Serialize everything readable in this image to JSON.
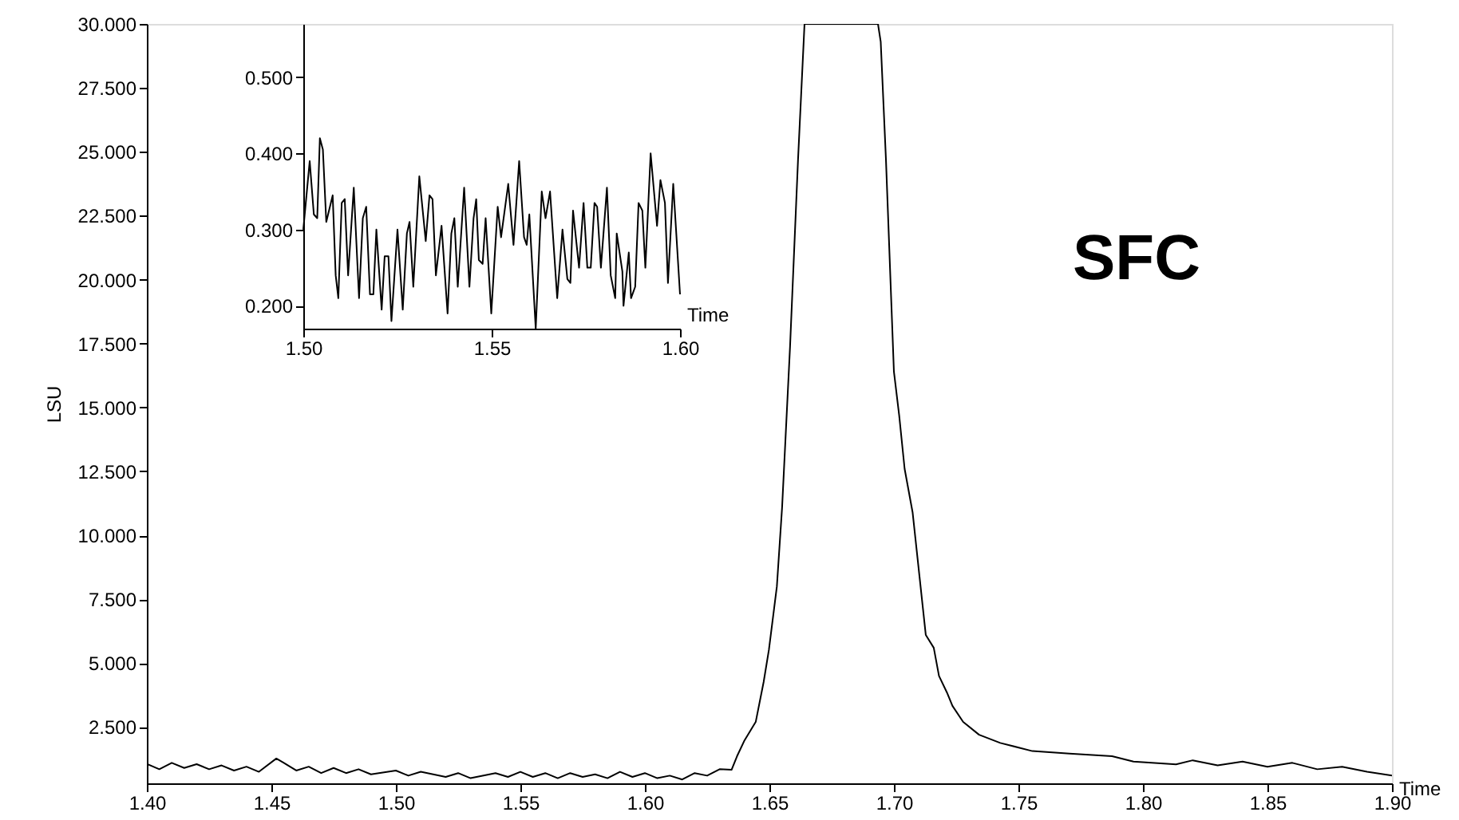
{
  "chart_data": [
    {
      "type": "line",
      "xlabel": "Time",
      "ylabel": "LSU",
      "annotations": [
        "SFC"
      ],
      "grid": false,
      "xlim": [
        1.4,
        1.9
      ],
      "ylim": [
        0.3,
        30
      ],
      "xticks": [
        {
          "value": 1.4,
          "label": "1.40"
        },
        {
          "value": 1.45,
          "label": "1.45"
        },
        {
          "value": 1.5,
          "label": "1.50"
        },
        {
          "value": 1.55,
          "label": "1.55"
        },
        {
          "value": 1.6,
          "label": "1.60"
        },
        {
          "value": 1.65,
          "label": "1.65"
        },
        {
          "value": 1.7,
          "label": "1.70"
        },
        {
          "value": 1.75,
          "label": "1.75"
        },
        {
          "value": 1.8,
          "label": "1.80"
        },
        {
          "value": 1.85,
          "label": "1.85"
        },
        {
          "value": 1.9,
          "label": "1.90"
        }
      ],
      "yticks": [
        {
          "value": 2.5,
          "label": "2.500"
        },
        {
          "value": 5,
          "label": "5.000"
        },
        {
          "value": 7.5,
          "label": "7.500"
        },
        {
          "value": 10,
          "label": "10.000"
        },
        {
          "value": 12.5,
          "label": "12.500"
        },
        {
          "value": 15,
          "label": "15.000"
        },
        {
          "value": 17.5,
          "label": "17.500"
        },
        {
          "value": 20,
          "label": "20.000"
        },
        {
          "value": 22.5,
          "label": "22.500"
        },
        {
          "value": 25,
          "label": "25.000"
        },
        {
          "value": 27.5,
          "label": "27.500"
        },
        {
          "value": 30,
          "label": "30.000"
        }
      ],
      "x": [
        1.4,
        1.405,
        1.41,
        1.415,
        1.42,
        1.425,
        1.43,
        1.435,
        1.44,
        1.445,
        1.452,
        1.455,
        1.46,
        1.465,
        1.47,
        1.475,
        1.48,
        1.485,
        1.49,
        1.5,
        1.505,
        1.51,
        1.52,
        1.525,
        1.53,
        1.54,
        1.545,
        1.55,
        1.555,
        1.56,
        1.565,
        1.57,
        1.575,
        1.58,
        1.585,
        1.59,
        1.595,
        1.6,
        1.605,
        1.61,
        1.615,
        1.62,
        1.625,
        1.63,
        1.6348,
        1.637,
        1.64,
        1.6445,
        1.6477,
        1.6498,
        1.653,
        1.6551,
        1.6583,
        1.6615,
        1.6641,
        1.6936,
        1.6947,
        1.6968,
        1.7,
        1.7021,
        1.7043,
        1.7075,
        1.7107,
        1.7128,
        1.716,
        1.7181,
        1.7213,
        1.7235,
        1.7278,
        1.7342,
        1.7427,
        1.7556,
        1.7705,
        1.7876,
        1.7962,
        1.8133,
        1.82,
        1.83,
        1.84,
        1.85,
        1.86,
        1.87,
        1.88,
        1.89,
        1.9
      ],
      "series": [
        {
          "color": "#000000",
          "values": [
            1.06,
            0.85,
            1.1,
            0.9,
            1.05,
            0.85,
            1.0,
            0.8,
            0.95,
            0.75,
            1.27,
            1.1,
            0.8,
            0.95,
            0.7,
            0.9,
            0.7,
            0.85,
            0.65,
            0.8,
            0.6,
            0.75,
            0.55,
            0.7,
            0.5,
            0.7,
            0.55,
            0.75,
            0.55,
            0.7,
            0.5,
            0.7,
            0.55,
            0.65,
            0.5,
            0.75,
            0.55,
            0.7,
            0.5,
            0.6,
            0.45,
            0.7,
            0.6,
            0.85,
            0.83,
            1.36,
            1.98,
            2.7,
            4.27,
            5.52,
            8.0,
            11.1,
            17.4,
            24.7,
            30,
            30,
            29.3,
            24.7,
            16.4,
            14.7,
            12.6,
            10.9,
            8.0,
            6.1,
            5.6,
            4.5,
            3.85,
            3.33,
            2.7,
            2.2,
            1.88,
            1.56,
            1.46,
            1.36,
            1.15,
            1.04,
            1.2,
            1.0,
            1.15,
            0.95,
            1.1,
            0.85,
            0.95,
            0.75,
            0.6
          ]
        }
      ]
    },
    {
      "type": "line",
      "xlabel": "Time",
      "grid": false,
      "xlim": [
        1.5,
        1.6
      ],
      "ylim": [
        0.17,
        0.57
      ],
      "xticks": [
        {
          "value": 1.5,
          "label": "1.50"
        },
        {
          "value": 1.55,
          "label": "1.55"
        },
        {
          "value": 1.6,
          "label": "1.60"
        }
      ],
      "yticks": [
        {
          "value": 0.2,
          "label": "0.200"
        },
        {
          "value": 0.3,
          "label": "0.300"
        },
        {
          "value": 0.4,
          "label": "0.400"
        },
        {
          "value": 0.5,
          "label": "0.500"
        }
      ],
      "x": [
        1.5,
        1.5017,
        1.5028,
        1.5037,
        1.5044,
        1.5052,
        1.5061,
        1.5078,
        1.5086,
        1.5093,
        1.5102,
        1.511,
        1.5119,
        1.5134,
        1.5148,
        1.5158,
        1.5167,
        1.5177,
        1.5186,
        1.5194,
        1.5208,
        1.5216,
        1.5226,
        1.5234,
        1.525,
        1.5264,
        1.5275,
        1.5282,
        1.5292,
        1.5308,
        1.5325,
        1.5335,
        1.5343,
        1.5352,
        1.5367,
        1.5383,
        1.5393,
        1.5401,
        1.541,
        1.5427,
        1.5441,
        1.5452,
        1.5459,
        1.5466,
        1.5476,
        1.5484,
        1.5499,
        1.5516,
        1.5525,
        1.5544,
        1.5558,
        1.5573,
        1.5586,
        1.5593,
        1.56,
        1.5617,
        1.5633,
        1.5643,
        1.5655,
        1.5674,
        1.5688,
        1.5701,
        1.5709,
        1.5716,
        1.5732,
        1.5744,
        1.5754,
        1.5763,
        1.5773,
        1.578,
        1.579,
        1.5806,
        1.5816,
        1.5828,
        1.5832,
        1.5847,
        1.585,
        1.5864,
        1.587,
        1.5881,
        1.589,
        1.59,
        1.5908,
        1.5922,
        1.5939,
        1.5948,
        1.596,
        1.5968,
        1.5982,
        1.6
      ],
      "series": [
        {
          "color": "#000000",
          "values": [
            0.3,
            0.39,
            0.32,
            0.315,
            0.42,
            0.405,
            0.31,
            0.345,
            0.24,
            0.21,
            0.335,
            0.34,
            0.24,
            0.355,
            0.21,
            0.315,
            0.33,
            0.215,
            0.215,
            0.3,
            0.195,
            0.265,
            0.265,
            0.18,
            0.3,
            0.195,
            0.295,
            0.31,
            0.225,
            0.37,
            0.285,
            0.345,
            0.34,
            0.24,
            0.305,
            0.19,
            0.295,
            0.315,
            0.225,
            0.355,
            0.225,
            0.315,
            0.34,
            0.26,
            0.255,
            0.315,
            0.19,
            0.33,
            0.29,
            0.36,
            0.28,
            0.39,
            0.29,
            0.28,
            0.32,
            0.17,
            0.35,
            0.315,
            0.35,
            0.21,
            0.3,
            0.235,
            0.23,
            0.325,
            0.25,
            0.335,
            0.25,
            0.25,
            0.335,
            0.33,
            0.25,
            0.355,
            0.24,
            0.21,
            0.295,
            0.245,
            0.2,
            0.27,
            0.21,
            0.225,
            0.335,
            0.325,
            0.25,
            0.4,
            0.305,
            0.365,
            0.335,
            0.23,
            0.36,
            0.215
          ]
        }
      ]
    }
  ]
}
